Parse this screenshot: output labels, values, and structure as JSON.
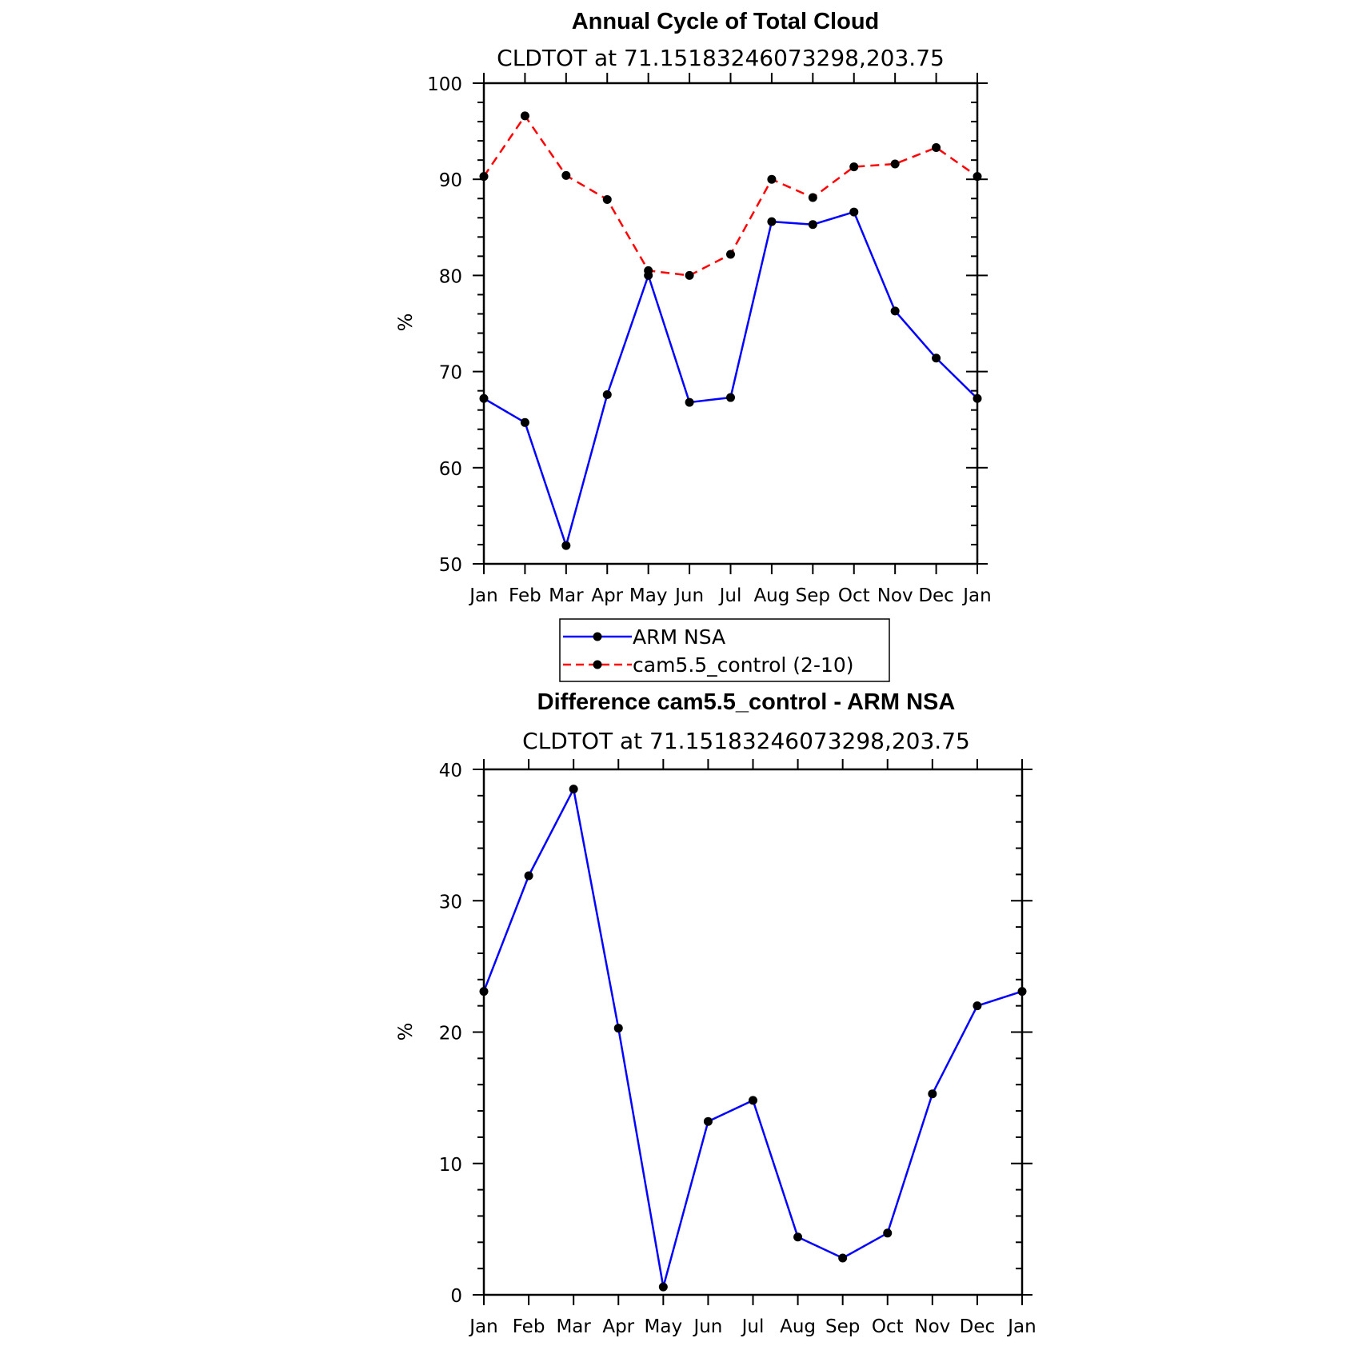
{
  "chart_data": [
    {
      "type": "line",
      "title": "Annual Cycle of Total Cloud",
      "subtitle": "CLDTOT at 71.15183246073298,203.75",
      "xlabel": "",
      "ylabel": "%",
      "categories": [
        "Jan",
        "Feb",
        "Mar",
        "Apr",
        "May",
        "Jun",
        "Jul",
        "Aug",
        "Sep",
        "Oct",
        "Nov",
        "Dec",
        "Jan"
      ],
      "ylim": [
        50,
        100
      ],
      "yticks": [
        50,
        60,
        70,
        80,
        90,
        100
      ],
      "grid": false,
      "legend_position": "bottom-center",
      "series": [
        {
          "name": "ARM NSA",
          "color": "#0000ff",
          "dash": "solid",
          "marker": "circle",
          "values": [
            67.2,
            64.7,
            51.9,
            67.6,
            80.0,
            66.8,
            67.3,
            85.6,
            85.3,
            86.6,
            76.3,
            71.4,
            67.2
          ]
        },
        {
          "name": "cam5.5_control (2-10)",
          "color": "#ff0000",
          "dash": "dashed",
          "marker": "circle",
          "values": [
            90.3,
            96.6,
            90.4,
            87.9,
            80.5,
            80.0,
            82.2,
            90.0,
            88.1,
            91.3,
            91.6,
            93.3,
            90.3
          ]
        }
      ]
    },
    {
      "type": "line",
      "title": "Difference cam5.5_control - ARM NSA",
      "subtitle": "CLDTOT at 71.15183246073298,203.75",
      "xlabel": "",
      "ylabel": "%",
      "categories": [
        "Jan",
        "Feb",
        "Mar",
        "Apr",
        "May",
        "Jun",
        "Jul",
        "Aug",
        "Sep",
        "Oct",
        "Nov",
        "Dec",
        "Jan"
      ],
      "ylim": [
        0,
        40
      ],
      "yticks": [
        0,
        10,
        20,
        30,
        40
      ],
      "grid": false,
      "series": [
        {
          "color": "#0000ff",
          "dash": "solid",
          "marker": "circle",
          "values": [
            23.1,
            31.9,
            38.5,
            20.3,
            0.6,
            13.2,
            14.8,
            4.4,
            2.8,
            4.7,
            15.3,
            22.0,
            23.1
          ]
        }
      ]
    }
  ]
}
